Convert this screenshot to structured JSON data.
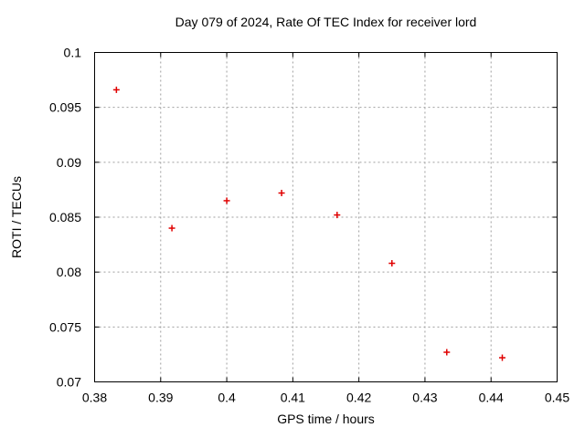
{
  "chart_data": {
    "type": "scatter",
    "title": "Day 079 of 2024, Rate Of TEC Index for receiver lord",
    "xlabel": "GPS time / hours",
    "ylabel": "ROTI / TECUs",
    "xlim": [
      0.38,
      0.45
    ],
    "ylim": [
      0.07,
      0.1
    ],
    "xtick_values": [
      0.38,
      0.39,
      0.4,
      0.41,
      0.42,
      0.43,
      0.44,
      0.45
    ],
    "xtick_labels": [
      "0.38",
      "0.39",
      "0.4",
      "0.41",
      "0.42",
      "0.43",
      "0.44",
      "0.45"
    ],
    "ytick_values": [
      0.07,
      0.075,
      0.08,
      0.085,
      0.09,
      0.095,
      0.1
    ],
    "ytick_labels": [
      "0.07",
      "0.075",
      "0.08",
      "0.085",
      "0.09",
      "0.095",
      "0.1"
    ],
    "grid": true,
    "legend": "none",
    "marker": "plus",
    "colors": {
      "marker": "#e00000",
      "grid": "#9e9e9e",
      "axis": "#000000",
      "background": "#ffffff"
    },
    "x": [
      0.3833,
      0.3917,
      0.4,
      0.4083,
      0.4167,
      0.425,
      0.4333,
      0.4417
    ],
    "y": [
      0.0966,
      0.084,
      0.0865,
      0.0872,
      0.0852,
      0.0808,
      0.0727,
      0.0722
    ]
  }
}
